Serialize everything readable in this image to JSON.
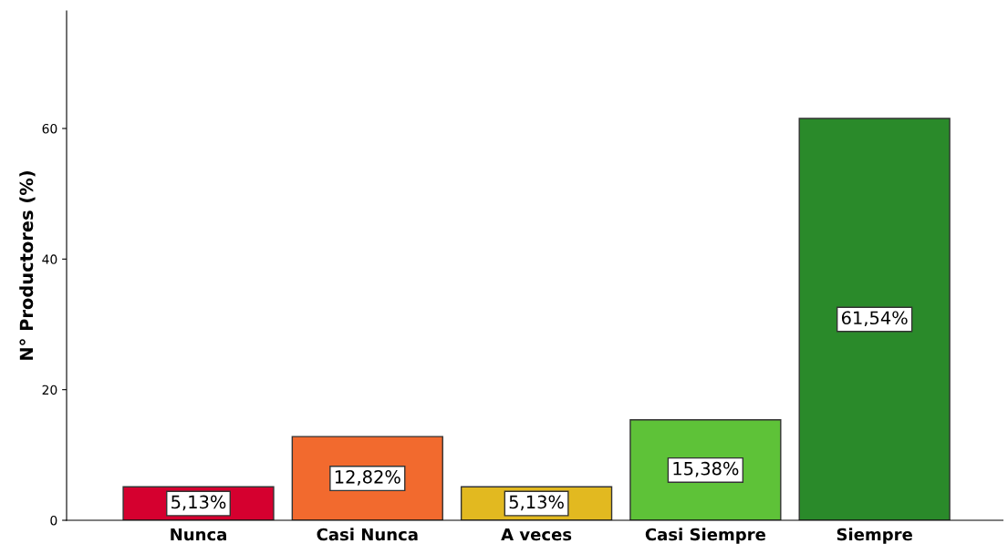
{
  "chart_data": {
    "type": "bar",
    "ylabel": "N° Productores (%)",
    "categories": [
      "Nunca",
      "Casi Nunca",
      "A veces",
      "Casi Siempre",
      "Siempre"
    ],
    "values": [
      5.13,
      12.82,
      5.13,
      15.38,
      61.54
    ],
    "value_labels": [
      "5,13%",
      "12,82%",
      "5,13%",
      "15,38%",
      "61,54%"
    ],
    "colors": [
      "#d5002f",
      "#f26a2e",
      "#e2b920",
      "#5ec238",
      "#2a8a2a"
    ],
    "ylim": [
      0,
      78
    ],
    "yticks": [
      0,
      20,
      40,
      60
    ],
    "grid": false,
    "legend": false
  }
}
